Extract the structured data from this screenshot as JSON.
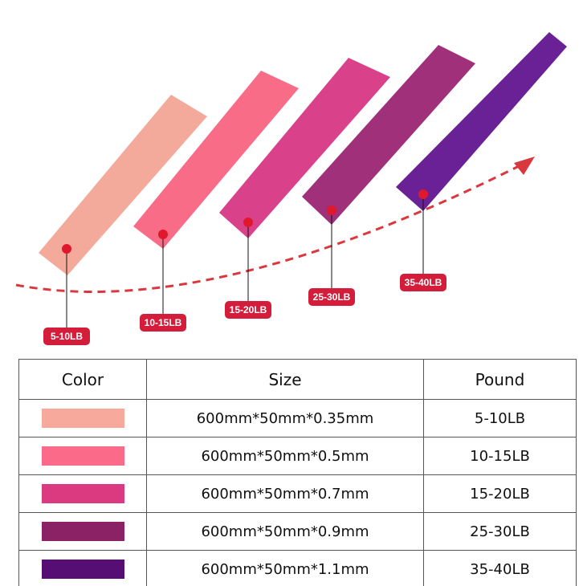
{
  "bands": [
    {
      "pound": "5-10LB",
      "color": "#f4aa9a"
    },
    {
      "pound": "10-15LB",
      "color": "#f96c88"
    },
    {
      "pound": "15-20LB",
      "color": "#d9418a"
    },
    {
      "pound": "25-30LB",
      "color": "#a0307a"
    },
    {
      "pound": "35-40LB",
      "color": "#6a2196"
    }
  ],
  "accent": "#d31d3b",
  "table": {
    "headers": [
      "Color",
      "Size",
      "Pound"
    ],
    "rows": [
      {
        "color": "#f7a99c",
        "size": "600mm*50mm*0.35mm",
        "pound": "5-10LB"
      },
      {
        "color": "#fb6b89",
        "size": "600mm*50mm*0.5mm",
        "pound": "10-15LB"
      },
      {
        "color": "#dc3a80",
        "size": "600mm*50mm*0.7mm",
        "pound": "15-20LB"
      },
      {
        "color": "#8b2266",
        "size": "600mm*50mm*0.9mm",
        "pound": "25-30LB"
      },
      {
        "color": "#560d74",
        "size": "600mm*50mm*1.1mm",
        "pound": "35-40LB"
      }
    ]
  }
}
